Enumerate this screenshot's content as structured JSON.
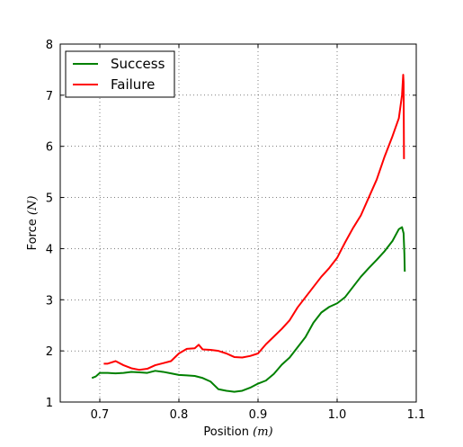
{
  "chart_data": {
    "type": "line",
    "xlabel": "Position",
    "xunit": "(m)",
    "ylabel": "Force",
    "yunit": "(N)",
    "xlim": [
      0.65,
      1.1
    ],
    "ylim": [
      1,
      8
    ],
    "xticks": [
      0.7,
      0.8,
      0.9,
      1.0,
      1.1
    ],
    "xtick_labels": [
      "0.7",
      "0.8",
      "0.9",
      "1.0",
      "1.1"
    ],
    "yticks": [
      1,
      2,
      3,
      4,
      5,
      6,
      7,
      8
    ],
    "ytick_labels": [
      "1",
      "2",
      "3",
      "4",
      "5",
      "6",
      "7",
      "8"
    ],
    "grid": true,
    "legend": "top-left",
    "series": [
      {
        "name": "Success",
        "color": "#008000",
        "x": [
          0.69,
          0.695,
          0.7,
          0.71,
          0.72,
          0.73,
          0.74,
          0.75,
          0.76,
          0.77,
          0.78,
          0.79,
          0.8,
          0.81,
          0.82,
          0.83,
          0.84,
          0.85,
          0.86,
          0.87,
          0.88,
          0.89,
          0.9,
          0.91,
          0.92,
          0.93,
          0.94,
          0.95,
          0.96,
          0.97,
          0.98,
          0.99,
          1.0,
          1.01,
          1.02,
          1.03,
          1.04,
          1.05,
          1.06,
          1.07,
          1.078,
          1.082,
          1.084,
          1.085,
          1.0855
        ],
        "y": [
          1.47,
          1.5,
          1.57,
          1.57,
          1.56,
          1.57,
          1.59,
          1.58,
          1.57,
          1.61,
          1.59,
          1.56,
          1.53,
          1.52,
          1.51,
          1.47,
          1.4,
          1.25,
          1.22,
          1.2,
          1.22,
          1.28,
          1.36,
          1.42,
          1.55,
          1.73,
          1.87,
          2.07,
          2.27,
          2.55,
          2.75,
          2.86,
          2.93,
          3.05,
          3.25,
          3.45,
          3.62,
          3.78,
          3.95,
          4.15,
          4.38,
          4.42,
          4.3,
          3.9,
          3.55
        ]
      },
      {
        "name": "Failure",
        "color": "#ff0000",
        "x": [
          0.705,
          0.71,
          0.72,
          0.73,
          0.74,
          0.75,
          0.76,
          0.77,
          0.78,
          0.79,
          0.8,
          0.81,
          0.82,
          0.825,
          0.83,
          0.84,
          0.85,
          0.86,
          0.87,
          0.88,
          0.89,
          0.9,
          0.91,
          0.92,
          0.93,
          0.94,
          0.95,
          0.96,
          0.97,
          0.98,
          0.99,
          1.0,
          1.01,
          1.02,
          1.03,
          1.04,
          1.05,
          1.06,
          1.07,
          1.078,
          1.082,
          1.0835,
          1.084,
          1.0845
        ],
        "y": [
          1.75,
          1.75,
          1.8,
          1.72,
          1.66,
          1.63,
          1.65,
          1.72,
          1.76,
          1.8,
          1.95,
          2.04,
          2.05,
          2.12,
          2.03,
          2.02,
          2.0,
          1.95,
          1.88,
          1.87,
          1.9,
          1.95,
          2.13,
          2.28,
          2.43,
          2.6,
          2.85,
          3.05,
          3.25,
          3.45,
          3.62,
          3.82,
          4.12,
          4.4,
          4.65,
          5.0,
          5.35,
          5.8,
          6.2,
          6.55,
          7.0,
          7.4,
          7.25,
          5.75
        ]
      }
    ]
  }
}
